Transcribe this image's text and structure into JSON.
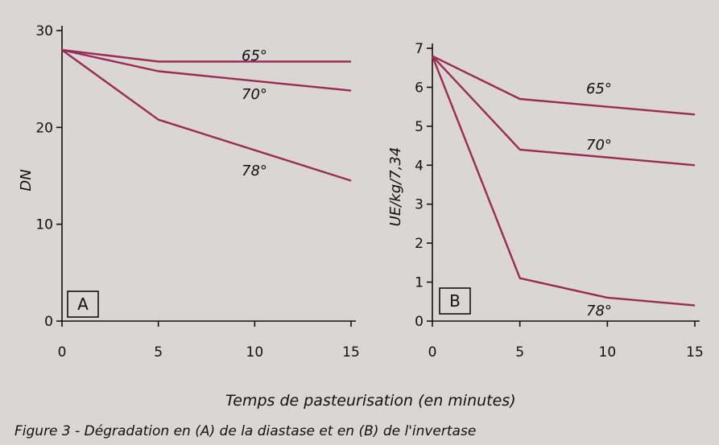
{
  "figure": {
    "xlabel": "Temps de pasteurisation (en minutes)",
    "caption": "Figure 3 - Dégradation en (A) de la diastase et en (B) de l'invertase"
  },
  "chart_data": [
    {
      "type": "line",
      "panel": "A",
      "ylabel": "DN",
      "xlabel": "Temps de pasteurisation (en minutes)",
      "xlim": [
        0,
        15
      ],
      "ylim": [
        0,
        30
      ],
      "x_ticks": [
        0,
        5,
        10,
        15
      ],
      "y_ticks": [
        0,
        10,
        20,
        30
      ],
      "series": [
        {
          "name": "65°",
          "x": [
            0,
            5,
            15
          ],
          "y": [
            28,
            26.8,
            26.8
          ]
        },
        {
          "name": "70°",
          "x": [
            0,
            5,
            15
          ],
          "y": [
            28,
            25.8,
            23.8
          ]
        },
        {
          "name": "78°",
          "x": [
            0,
            5,
            15
          ],
          "y": [
            28,
            20.8,
            14.5
          ]
        }
      ]
    },
    {
      "type": "line",
      "panel": "B",
      "ylabel": "UE/kg/7,34",
      "xlabel": "Temps de pasteurisation (en minutes)",
      "xlim": [
        0,
        15
      ],
      "ylim": [
        0,
        7
      ],
      "x_ticks": [
        0,
        5,
        10,
        15
      ],
      "y_ticks": [
        0,
        1,
        2,
        3,
        4,
        5,
        6,
        7
      ],
      "series": [
        {
          "name": "65°",
          "x": [
            0,
            5,
            15
          ],
          "y": [
            6.8,
            5.7,
            5.3
          ]
        },
        {
          "name": "70°",
          "x": [
            0,
            5,
            15
          ],
          "y": [
            6.8,
            4.4,
            4.0
          ]
        },
        {
          "name": "78°",
          "x": [
            0,
            5,
            10,
            15
          ],
          "y": [
            6.8,
            1.1,
            0.6,
            0.4
          ]
        }
      ]
    }
  ]
}
